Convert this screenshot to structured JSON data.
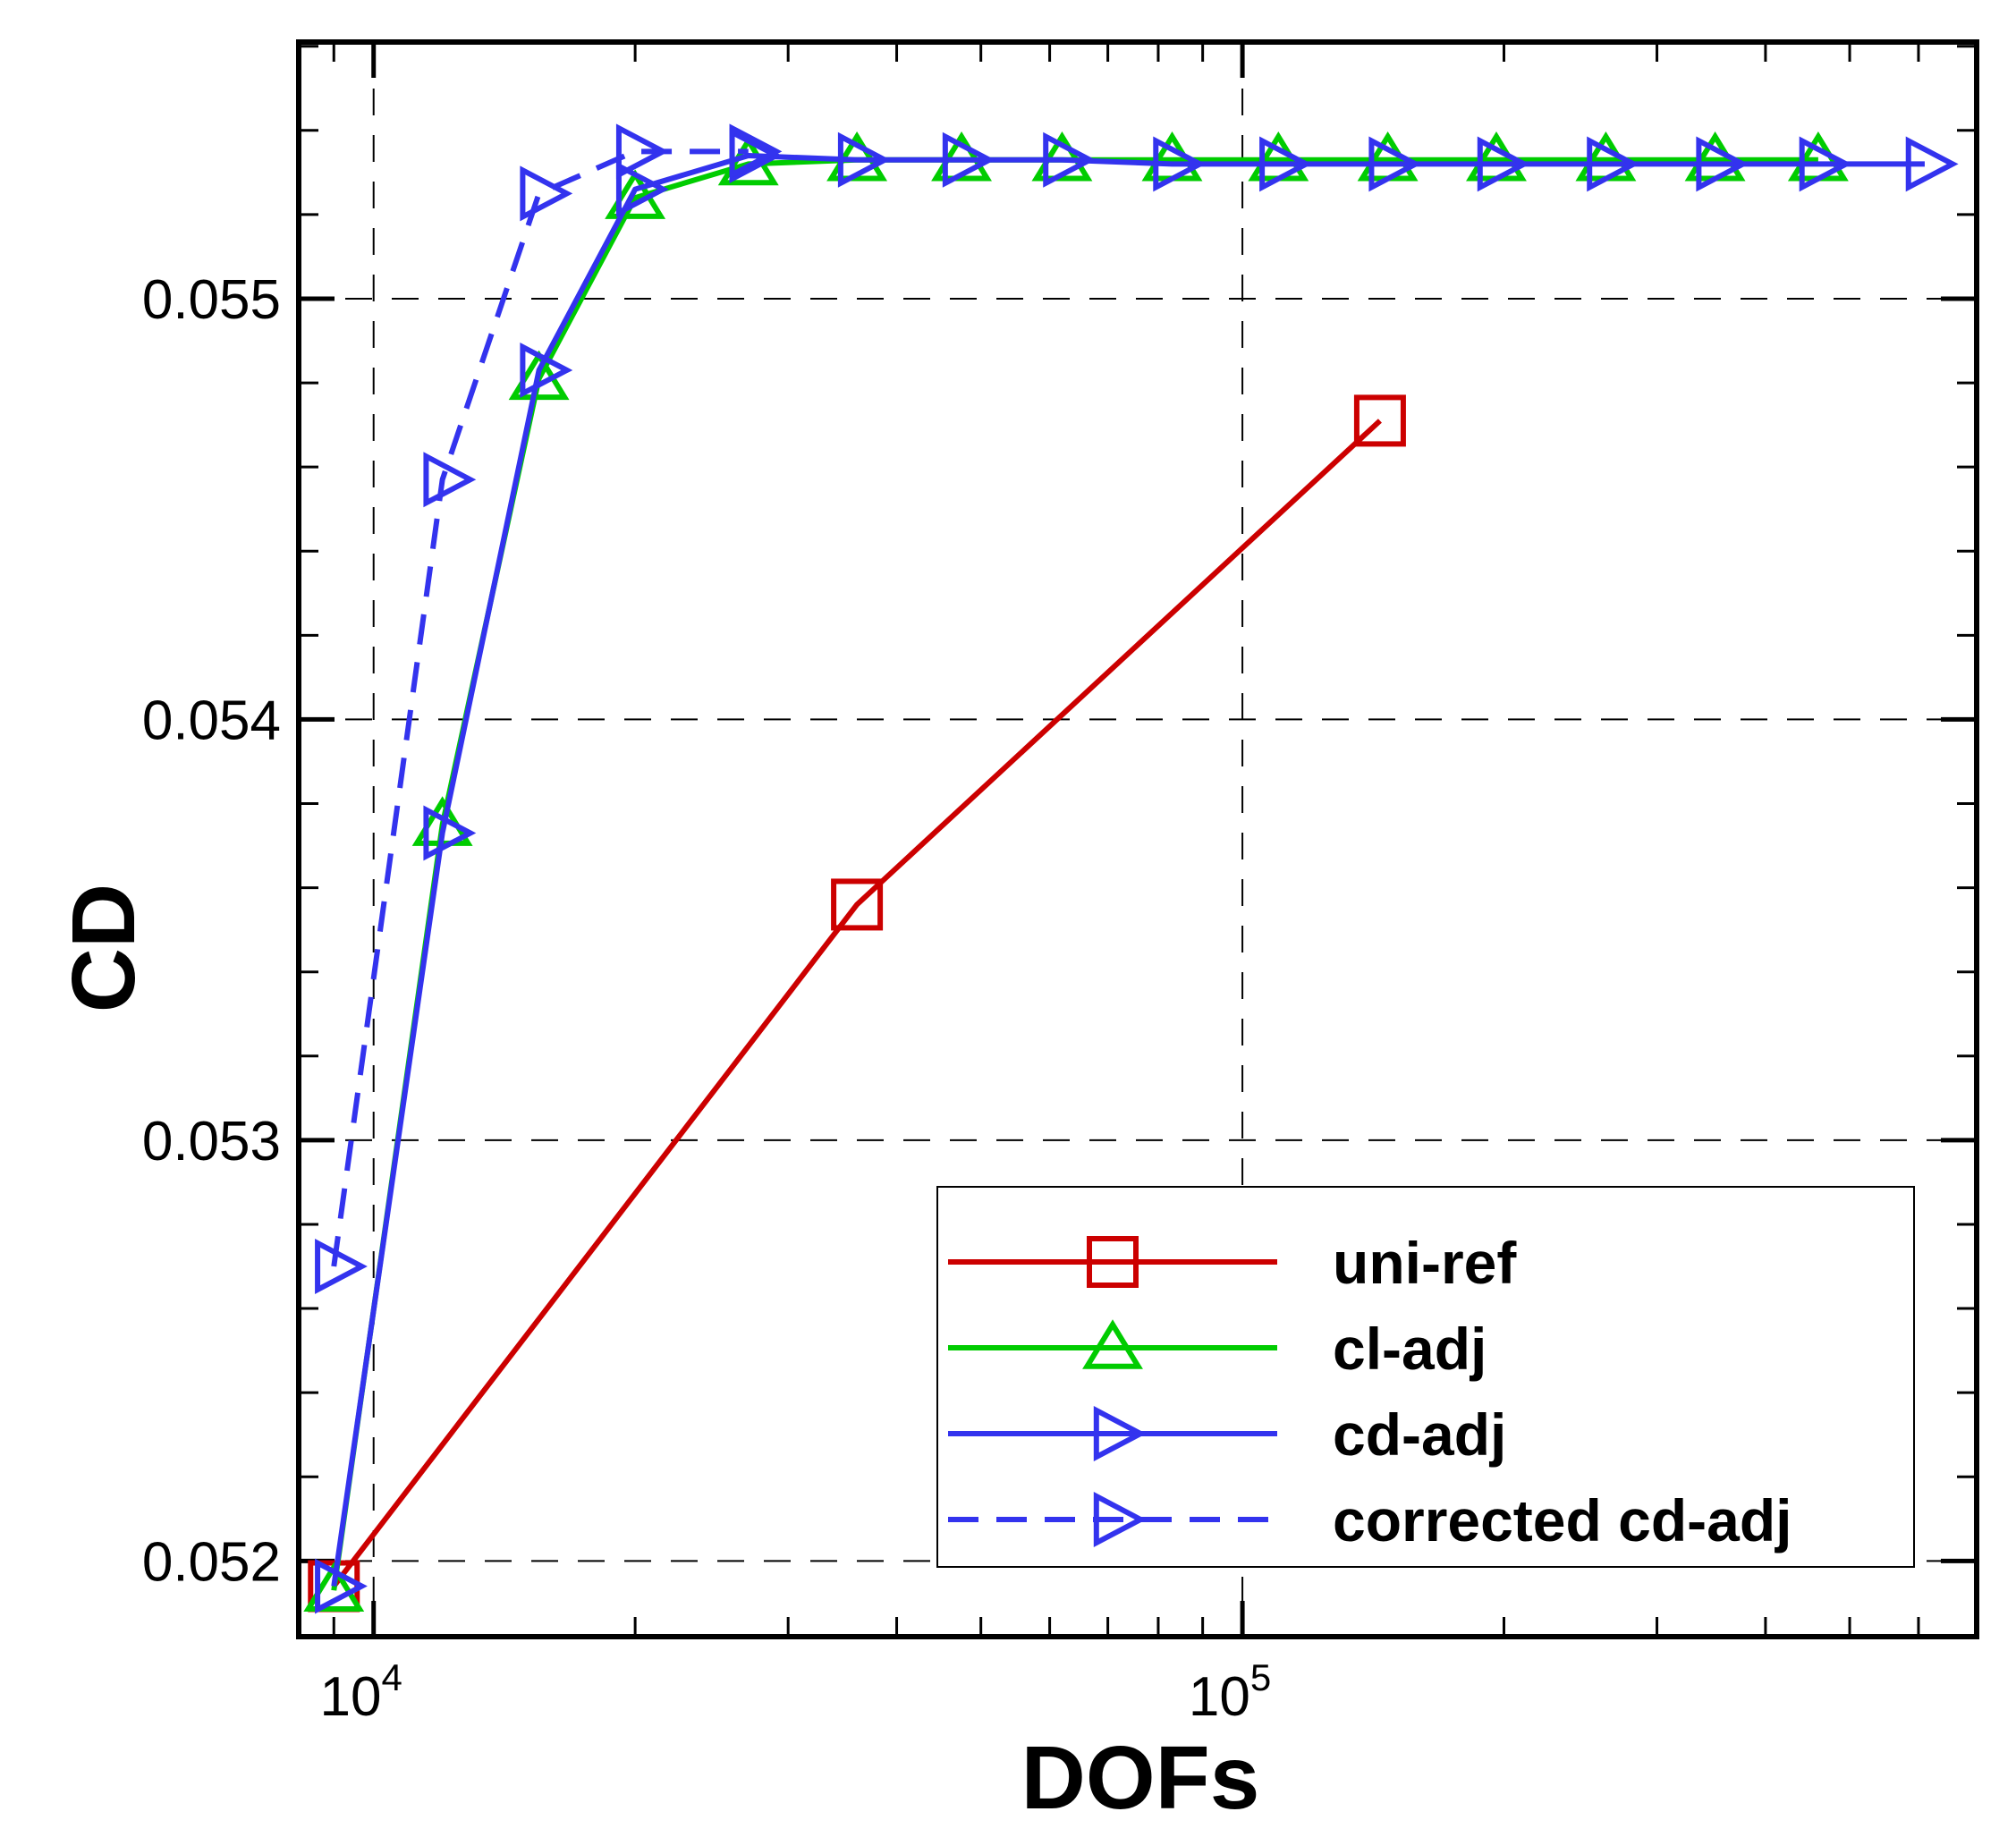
{
  "chart_data": {
    "type": "line",
    "xlabel": "DOFs",
    "ylabel": "CD",
    "xscale": "log",
    "xlim": [
      8200,
      700000
    ],
    "ylim": [
      0.05182,
      0.05561
    ],
    "x_ticks": [
      {
        "value": 10000,
        "base": "10",
        "exp": "4"
      },
      {
        "value": 100000,
        "base": "10",
        "exp": "5"
      }
    ],
    "y_ticks": [
      "0.052",
      "0.053",
      "0.054",
      "0.055"
    ],
    "y_tick_values": [
      0.052,
      0.053,
      0.054,
      0.055
    ],
    "grid": true,
    "legend_position": "bottom-right",
    "series": [
      {
        "name": "uni-ref",
        "color": "#cc0000",
        "marker": "square",
        "dash": false,
        "x": [
          9000,
          36000,
          144000
        ],
        "y": [
          0.05194,
          0.05356,
          0.05471
        ]
      },
      {
        "name": "cl-adj",
        "color": "#00cc00",
        "marker": "triangle-up",
        "dash": false,
        "x": [
          9000,
          12000,
          15500,
          20000,
          27000,
          36000,
          47500,
          62000,
          83000,
          110000,
          147000,
          196000,
          262000,
          350000,
          460000
        ],
        "y": [
          0.05193,
          0.05375,
          0.05481,
          0.05524,
          0.05532,
          0.05533,
          0.05533,
          0.05533,
          0.05533,
          0.05533,
          0.05533,
          0.05533,
          0.05533,
          0.05533,
          0.05533
        ]
      },
      {
        "name": "cd-adj",
        "color": "#3333ee",
        "marker": "triangle-right",
        "dash": false,
        "x": [
          9000,
          12000,
          15500,
          20000,
          27000,
          36000,
          47500,
          62000,
          83000,
          110000,
          147000,
          196000,
          262000,
          350000,
          460000,
          610000
        ],
        "y": [
          0.05194,
          0.05373,
          0.05483,
          0.05526,
          0.05534,
          0.05533,
          0.05533,
          0.05533,
          0.05532,
          0.05532,
          0.05532,
          0.05532,
          0.05532,
          0.05532,
          0.05532,
          0.05532
        ]
      },
      {
        "name": "corrected cd-adj",
        "color": "#3333ee",
        "marker": "triangle-right",
        "dash": true,
        "x": [
          9000,
          12000,
          15500,
          20000,
          27000
        ],
        "y": [
          0.0527,
          0.05457,
          0.05525,
          0.05535,
          0.05535
        ]
      }
    ]
  }
}
